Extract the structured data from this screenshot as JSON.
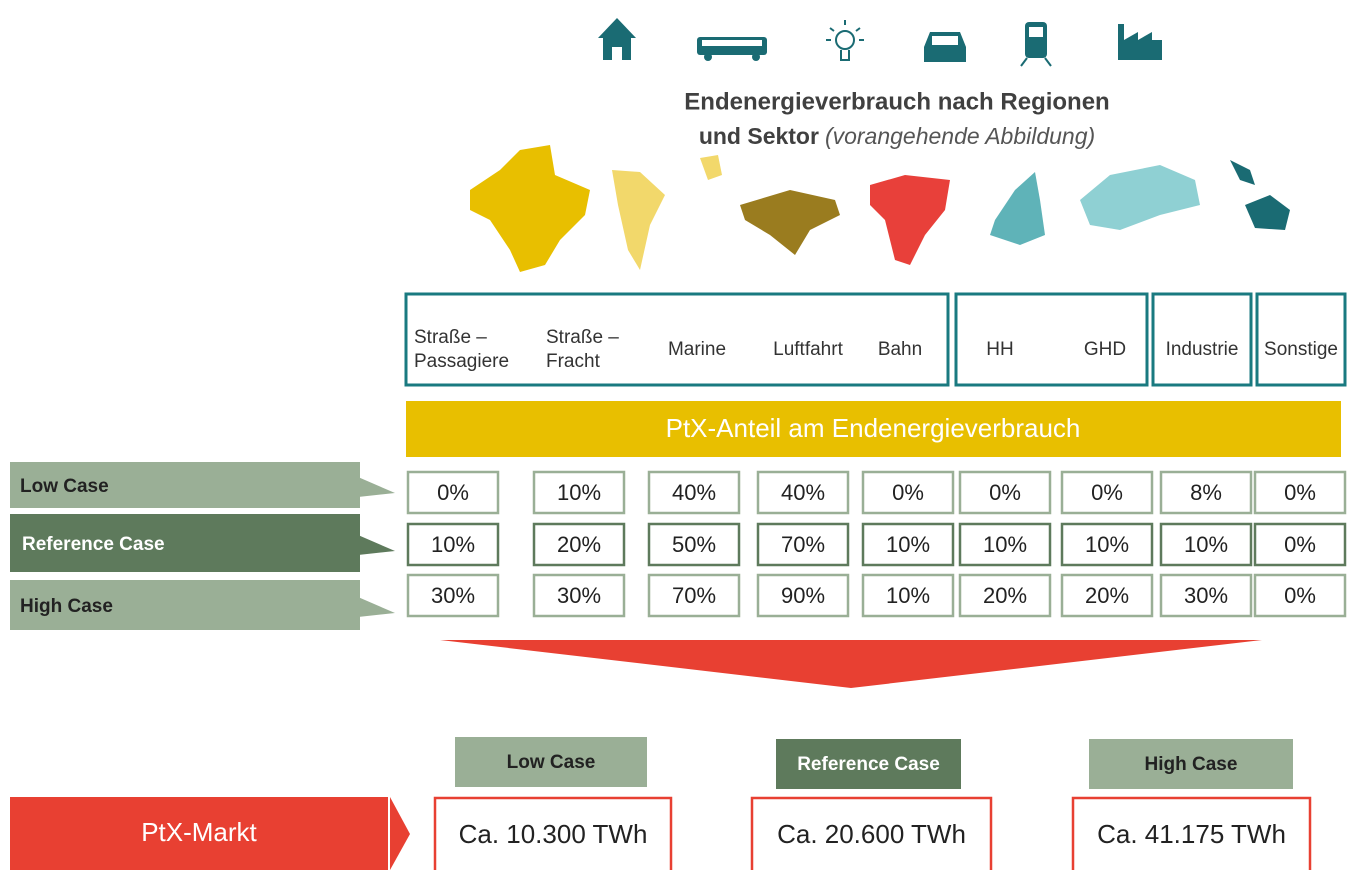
{
  "header": {
    "title_line1": "Endenergieverbrauch nach Regionen",
    "title_line2": "und Sektor",
    "note": "(vorangehende Abbildung)"
  },
  "sectors": [
    {
      "items": [
        [
          "Straße –",
          "Passagiere"
        ],
        [
          "Straße –",
          "Fracht"
        ],
        [
          "Marine"
        ],
        [
          "Luftfahrt"
        ],
        [
          "Bahn"
        ]
      ]
    },
    {
      "items": [
        [
          "HH"
        ],
        [
          "GHD"
        ]
      ]
    },
    {
      "items": [
        [
          "Industrie"
        ]
      ]
    },
    {
      "items": [
        [
          "Sonstige"
        ]
      ]
    }
  ],
  "banner": "PtX-Anteil am Endenergieverbrauch",
  "cases": [
    {
      "name": "Low Case",
      "values": [
        "0%",
        "10%",
        "40%",
        "40%",
        "0%",
        "0%",
        "0%",
        "8%",
        "0%"
      ]
    },
    {
      "name": "Reference Case",
      "values": [
        "10%",
        "20%",
        "50%",
        "70%",
        "10%",
        "10%",
        "10%",
        "10%",
        "0%"
      ]
    },
    {
      "name": "High Case",
      "values": [
        "30%",
        "30%",
        "70%",
        "90%",
        "10%",
        "20%",
        "20%",
        "30%",
        "0%"
      ]
    }
  ],
  "market": "PtX-Markt",
  "results": [
    {
      "case": "Low Case",
      "value": "Ca. 10.300 TWh"
    },
    {
      "case": "Reference Case",
      "value": "Ca. 20.600 TWh"
    },
    {
      "case": "High Case",
      "value": "Ca. 41.175 TWh"
    }
  ]
}
